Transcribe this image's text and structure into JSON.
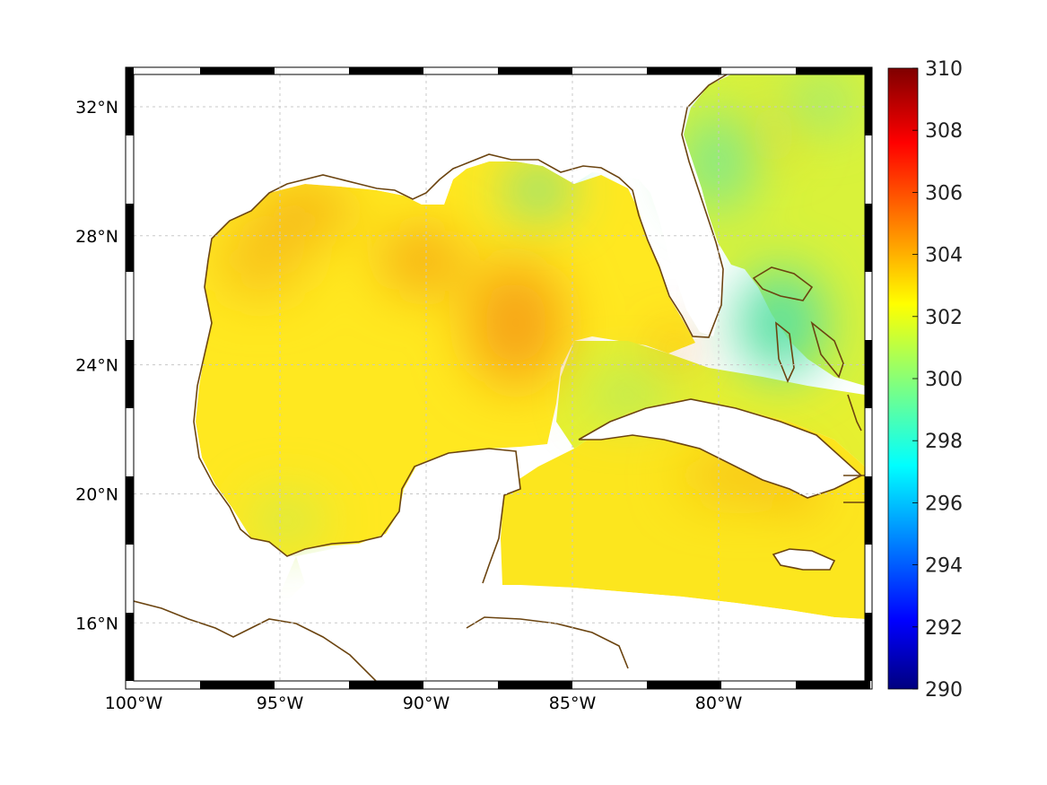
{
  "map": {
    "projection": "equidistant-cylindrical",
    "extent": {
      "lon": [
        -100,
        -75
      ],
      "lat": [
        14.2,
        33
      ]
    },
    "lon_labels": [
      {
        "lon": -100,
        "text": "100°W"
      },
      {
        "lon": -95,
        "text": "95°W"
      },
      {
        "lon": -90,
        "text": "90°W"
      },
      {
        "lon": -85,
        "text": "85°W"
      },
      {
        "lon": -80,
        "text": "80°W"
      }
    ],
    "lat_labels": [
      {
        "lat": 16,
        "text": "16°N"
      },
      {
        "lat": 20,
        "text": "20°N"
      },
      {
        "lat": 24,
        "text": "24°N"
      },
      {
        "lat": 28,
        "text": "28°N"
      },
      {
        "lat": 32,
        "text": "32°N"
      }
    ],
    "grid": true,
    "frame": "black-white-checkered",
    "coastline_color": "#6b4410",
    "field_description_colors": {
      "warm_core": "#f59c0a",
      "background": "#ffe019",
      "cool": "#3fe6b4"
    }
  },
  "colorbar": {
    "min": 290,
    "max": 310,
    "colormap": "jet",
    "tick_labels": [
      "290",
      "292",
      "294",
      "296",
      "298",
      "300",
      "302",
      "304",
      "306",
      "308",
      "310"
    ]
  }
}
